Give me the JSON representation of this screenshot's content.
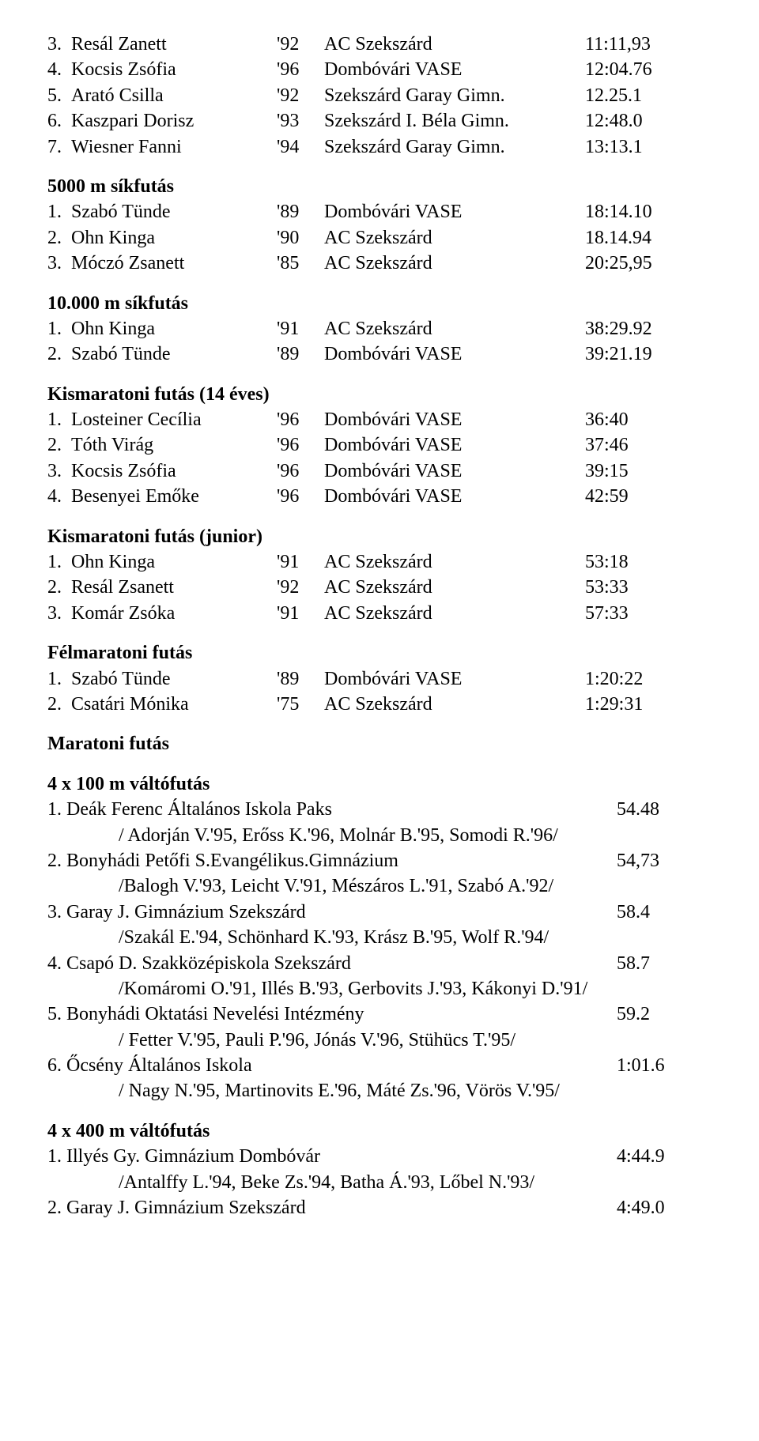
{
  "top_rows": [
    {
      "rank": "3.",
      "name": "Resál Zanett",
      "yr": "'92",
      "club": "AC Szekszárd",
      "res": "11:11,93"
    },
    {
      "rank": "4.",
      "name": "Kocsis Zsófia",
      "yr": "'96",
      "club": "Dombóvári VASE",
      "res": "12:04.76"
    },
    {
      "rank": "5.",
      "name": "Arató Csilla",
      "yr": "'92",
      "club": "Szekszárd Garay Gimn.",
      "res": "12.25.1"
    },
    {
      "rank": "6.",
      "name": "Kaszpari Dorisz",
      "yr": "'93",
      "club": "Szekszárd I. Béla Gimn.",
      "res": "12:48.0"
    },
    {
      "rank": "7.",
      "name": "Wiesner Fanni",
      "yr": "'94",
      "club": "Szekszárd Garay Gimn.",
      "res": "13:13.1"
    }
  ],
  "sections": [
    {
      "title": "5000 m síkfutás",
      "rows": [
        {
          "rank": "1.",
          "name": "Szabó Tünde",
          "yr": "'89",
          "club": "Dombóvári VASE",
          "res": "18:14.10"
        },
        {
          "rank": "2.",
          "name": "Ohn Kinga",
          "yr": "'90",
          "club": "AC Szekszárd",
          "res": "18.14.94"
        },
        {
          "rank": "3.",
          "name": "Móczó Zsanett",
          "yr": "'85",
          "club": "AC Szekszárd",
          "res": "20:25,95"
        }
      ]
    },
    {
      "title": "10.000 m síkfutás",
      "rows": [
        {
          "rank": "1.",
          "name": "Ohn Kinga",
          "yr": "'91",
          "club": "AC Szekszárd",
          "res": "38:29.92"
        },
        {
          "rank": "2.",
          "name": "Szabó Tünde",
          "yr": "'89",
          "club": "Dombóvári VASE",
          "res": "39:21.19"
        }
      ]
    },
    {
      "title": "Kismaratoni futás (14 éves)",
      "rows": [
        {
          "rank": "1.",
          "name": "Losteiner Cecília",
          "yr": "'96",
          "club": "Dombóvári VASE",
          "res": "36:40"
        },
        {
          "rank": "2.",
          "name": "Tóth Virág",
          "yr": "'96",
          "club": "Dombóvári VASE",
          "res": "37:46"
        },
        {
          "rank": "3.",
          "name": "Kocsis Zsófia",
          "yr": "'96",
          "club": "Dombóvári VASE",
          "res": "39:15"
        },
        {
          "rank": "4.",
          "name": "Besenyei Emőke",
          "yr": "'96",
          "club": "Dombóvári VASE",
          "res": "42:59"
        }
      ]
    },
    {
      "title": "Kismaratoni futás (junior)",
      "rows": [
        {
          "rank": "1.",
          "name": "Ohn Kinga",
          "yr": "'91",
          "club": "AC Szekszárd",
          "res": "53:18"
        },
        {
          "rank": "2.",
          "name": "Resál Zsanett",
          "yr": "'92",
          "club": "AC Szekszárd",
          "res": "53:33"
        },
        {
          "rank": "3.",
          "name": "Komár Zsóka",
          "yr": "'91",
          "club": "AC Szekszárd",
          "res": "57:33"
        }
      ]
    },
    {
      "title": "Félmaratoni futás",
      "rows": [
        {
          "rank": "1.",
          "name": "Szabó Tünde",
          "yr": "'89",
          "club": "Dombóvári VASE",
          "res": "1:20:22"
        },
        {
          "rank": "2.",
          "name": "Csatári Mónika",
          "yr": "'75",
          "club": "AC Szekszárd",
          "res": "1:29:31"
        }
      ]
    }
  ],
  "maratoni_title": "Maratoni futás",
  "relay100": {
    "title": "4 x 100 m váltófutás",
    "entries": [
      {
        "team": "1. Deák Ferenc Általános Iskola Paks",
        "res": "54.48",
        "members": "/ Adorján V.'95, Erőss K.'96, Molnár B.'95, Somodi R.'96/"
      },
      {
        "team": "2. Bonyhádi Petőfi S.Evangélikus.Gimnázium",
        "res": "54,73",
        "members": "/Balogh V.'93, Leicht V.'91, Mészáros L.'91, Szabó A.'92/"
      },
      {
        "team": "3. Garay J. Gimnázium Szekszárd",
        "res": "58.4",
        "members": "/Szakál E.'94, Schönhard K.'93, Krász B.'95, Wolf R.'94/"
      },
      {
        "team": "4. Csapó D. Szakközépiskola Szekszárd",
        "res": "58.7",
        "members": "/Komáromi O.'91, Illés B.'93, Gerbovits J.'93, Kákonyi D.'91/"
      },
      {
        "team": "5. Bonyhádi Oktatási Nevelési Intézmény",
        "res": "59.2",
        "members": "/ Fetter V.'95, Pauli P.'96, Jónás V.'96, Stühücs T.'95/"
      },
      {
        "team": "6. Őcsény Általános Iskola",
        "res": "1:01.6",
        "members": "/ Nagy N.'95, Martinovits E.'96, Máté Zs.'96, Vörös V.'95/"
      }
    ]
  },
  "relay400": {
    "title": "4 x 400 m váltófutás",
    "entries": [
      {
        "team": "1. Illyés Gy. Gimnázium Dombóvár",
        "res": "4:44.9",
        "members": "/Antalffy L.'94, Beke Zs.'94, Batha Á.'93, Lőbel N.'93/"
      },
      {
        "team": "2. Garay J. Gimnázium Szekszárd",
        "res": "4:49.0",
        "members": ""
      }
    ]
  }
}
